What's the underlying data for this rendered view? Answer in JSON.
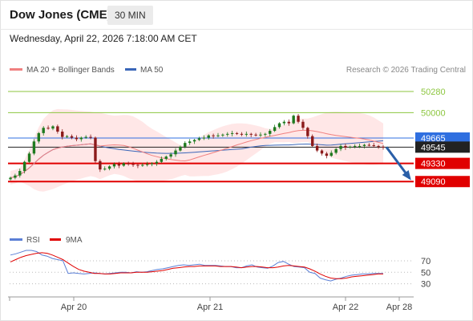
{
  "header": {
    "title": "Dow Jones (CME)",
    "timeframe": "30 MIN",
    "datetime": "Wednesday, April 22, 2026 7:18:00 AM CET"
  },
  "legend": {
    "ma20_label": "MA 20 + Bollinger Bands",
    "ma50_label": "MA 50",
    "copyright": "Research © 2026 Trading Central",
    "rsi_label": "RSI",
    "ma9_label": "9MA"
  },
  "colors": {
    "ma20": "#f08080",
    "band_fill": "#ffe3e3",
    "ma50": "#3a66b8",
    "resistance": "#8cc63f",
    "support": "#e00000",
    "pivot": "#2f6fe0",
    "current": "#222222",
    "rsi": "#5b7fd6",
    "rsi_ma": "#e00000",
    "candle_up": "#1f7a1f",
    "candle_down": "#8b1a1a",
    "arrow": "#2a5fa8"
  },
  "chart_data": [
    {
      "type": "candlestick",
      "y_range": [
        48700,
        50450
      ],
      "x_ticks": [
        "Apr 20",
        "Apr 21",
        "Apr 22",
        "Apr 28"
      ],
      "levels": [
        {
          "value": 50280,
          "label": "50280",
          "kind": "resistance"
        },
        {
          "value": 50000,
          "label": "50000",
          "kind": "resistance"
        },
        {
          "value": 49665,
          "label": "49665",
          "kind": "pivot"
        },
        {
          "value": 49545,
          "label": "49545",
          "kind": "current"
        },
        {
          "value": 49330,
          "label": "49330",
          "kind": "support"
        },
        {
          "value": 49090,
          "label": "49090",
          "kind": "support"
        }
      ],
      "series_close": [
        49140,
        49170,
        49230,
        49350,
        49460,
        49620,
        49730,
        49800,
        49790,
        49820,
        49750,
        49680,
        49690,
        49670,
        49650,
        49670,
        49680,
        49670,
        49360,
        49250,
        49260,
        49290,
        49320,
        49300,
        49330,
        49320,
        49310,
        49300,
        49310,
        49320,
        49330,
        49350,
        49390,
        49420,
        49450,
        49500,
        49550,
        49600,
        49620,
        49640,
        49660,
        49670,
        49700,
        49690,
        49700,
        49710,
        49720,
        49730,
        49720,
        49710,
        49720,
        49710,
        49700,
        49710,
        49720,
        49760,
        49810,
        49860,
        49880,
        49860,
        49960,
        49880,
        49800,
        49690,
        49560,
        49500,
        49460,
        49430,
        49470,
        49520,
        49560,
        49540,
        49550,
        49560,
        49560,
        49575,
        49570,
        49560,
        49550,
        49545
      ],
      "forecast_arrow": {
        "from": 49545,
        "to": 49090
      }
    },
    {
      "type": "line",
      "title": "RSI",
      "y_ticks": [
        70,
        50,
        30
      ],
      "series": [
        {
          "name": "RSI",
          "values": [
            80,
            82,
            85,
            88,
            88,
            86,
            80,
            78,
            74,
            72,
            70,
            48,
            49,
            48,
            47,
            48,
            49,
            48,
            47,
            48,
            49,
            50,
            50,
            49,
            51,
            50,
            51,
            53,
            55,
            56,
            58,
            60,
            62,
            63,
            62,
            63,
            64,
            62,
            62,
            62,
            61,
            60,
            60,
            58,
            58,
            61,
            63,
            59,
            58,
            57,
            61,
            67,
            69,
            64,
            60,
            59,
            58,
            50,
            48,
            40,
            37,
            35,
            38,
            40,
            43,
            45,
            46,
            47,
            47,
            48,
            48,
            48
          ]
        },
        {
          "name": "9MA",
          "values": [
            68,
            72,
            76,
            79,
            81,
            83,
            84,
            83,
            80,
            76,
            72,
            66,
            60,
            55,
            52,
            50,
            48,
            48,
            47,
            47,
            48,
            49,
            49,
            49,
            50,
            50,
            50,
            51,
            52,
            53,
            55,
            57,
            58,
            59,
            60,
            60,
            61,
            61,
            61,
            61,
            60,
            60,
            60,
            59,
            58,
            59,
            60,
            60,
            59,
            58,
            58,
            59,
            61,
            62,
            61,
            60,
            59,
            56,
            52,
            47,
            43,
            40,
            39,
            39,
            40,
            42,
            43,
            44,
            45,
            46,
            47,
            47
          ]
        }
      ]
    }
  ]
}
